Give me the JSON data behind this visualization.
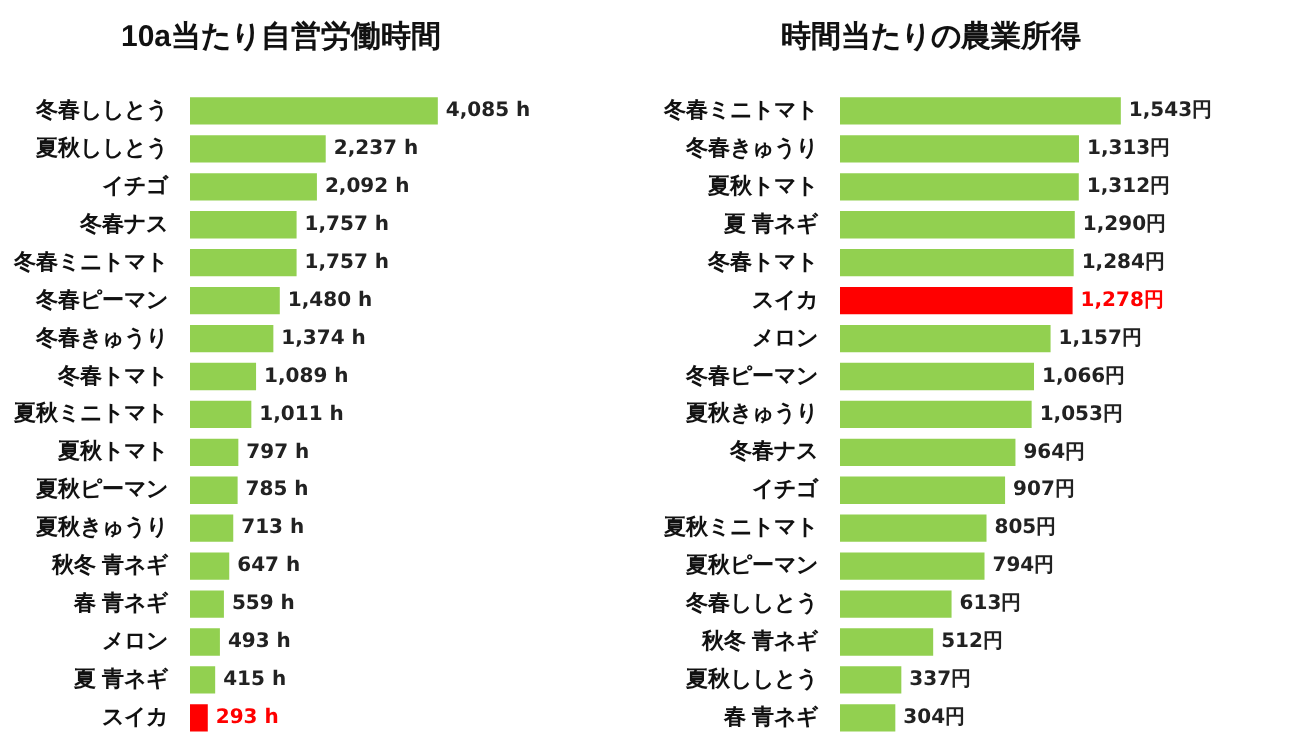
{
  "chart_data": [
    {
      "type": "bar",
      "orientation": "horizontal",
      "title": "10a当たり自営労働時間",
      "categories": [
        "冬春ししとう",
        "夏秋ししとう",
        "イチゴ",
        "冬春ナス",
        "冬春ミニトマト",
        "冬春ピーマン",
        "冬春きゅうり",
        "冬春トマト",
        "夏秋ミニトマト",
        "夏秋トマト",
        "夏秋ピーマン",
        "夏秋きゅうり",
        "秋冬 青ネギ",
        "春 青ネギ",
        "メロン",
        "夏 青ネギ",
        "スイカ"
      ],
      "values": [
        4085,
        2237,
        2092,
        1757,
        1757,
        1480,
        1374,
        1089,
        1011,
        797,
        785,
        713,
        647,
        559,
        493,
        415,
        293
      ],
      "colors": [
        "#92d050",
        "#92d050",
        "#92d050",
        "#92d050",
        "#92d050",
        "#92d050",
        "#92d050",
        "#92d050",
        "#92d050",
        "#92d050",
        "#92d050",
        "#92d050",
        "#92d050",
        "#92d050",
        "#92d050",
        "#92d050",
        "#ff0000"
      ],
      "value_labels": [
        "4,085 h",
        "2,237 h",
        "2,092 h",
        "1,757 h",
        "1,757 h",
        "1,480 h",
        "1,374 h",
        "1,089 h",
        "1,011 h",
        "797 h",
        "785 h",
        "713 h",
        "647 h",
        "559 h",
        "493 h",
        "415 h",
        "293 h"
      ]
    },
    {
      "type": "bar",
      "orientation": "horizontal",
      "title": "時間当たりの農業所得",
      "categories": [
        "冬春ミニトマト",
        "冬春きゅうり",
        "夏秋トマト",
        "夏 青ネギ",
        "冬春トマト",
        "スイカ",
        "メロン",
        "冬春ピーマン",
        "夏秋きゅうり",
        "冬春ナス",
        "イチゴ",
        "夏秋ミニトマト",
        "夏秋ピーマン",
        "冬春ししとう",
        "秋冬 青ネギ",
        "夏秋ししとう",
        "春 青ネギ"
      ],
      "values": [
        1543,
        1313,
        1312,
        1290,
        1284,
        1278,
        1157,
        1066,
        1053,
        964,
        907,
        805,
        794,
        613,
        512,
        337,
        304
      ],
      "colors": [
        "#92d050",
        "#92d050",
        "#92d050",
        "#92d050",
        "#92d050",
        "#ff0000",
        "#92d050",
        "#92d050",
        "#92d050",
        "#92d050",
        "#92d050",
        "#92d050",
        "#92d050",
        "#92d050",
        "#92d050",
        "#92d050",
        "#92d050"
      ],
      "value_labels": [
        "1,543円",
        "1,313円",
        "1,312円",
        "1,290円",
        "1,284円",
        "1,278円",
        "1,157円",
        "1,066円",
        "1,053円",
        "964円",
        "907円",
        "805円",
        "794円",
        "613円",
        "512円",
        "337円",
        "304円"
      ]
    }
  ]
}
